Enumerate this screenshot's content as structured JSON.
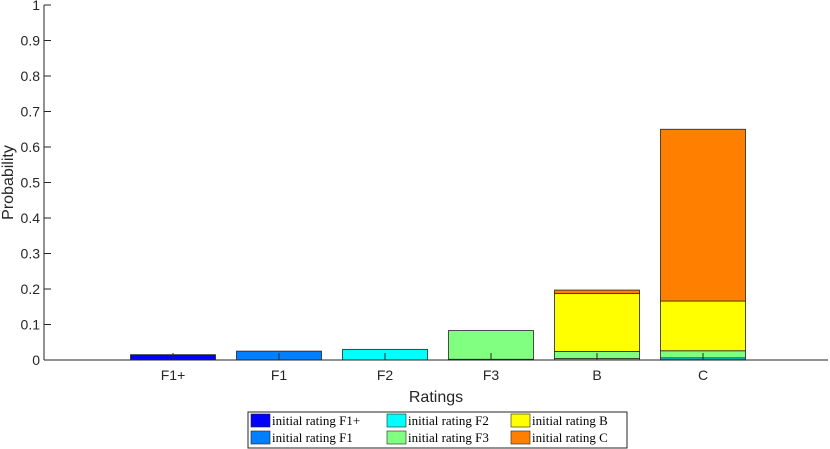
{
  "chart_data": {
    "type": "bar",
    "stacked": true,
    "categories": [
      "F1+",
      "F1",
      "F2",
      "F3",
      "B",
      "C"
    ],
    "xlabel": "Ratings",
    "ylabel": "Probability",
    "ylim": [
      0,
      1
    ],
    "yticks": [
      "0",
      "0.1",
      "0.2",
      "0.3",
      "0.4",
      "0.5",
      "0.6",
      "0.7",
      "0.8",
      "0.9",
      "1"
    ],
    "grid": false,
    "legend_position": "bottom",
    "series": [
      {
        "name": "initial rating F1+",
        "color": "#0000ff",
        "values": [
          0.015,
          0,
          0,
          0,
          0,
          0
        ]
      },
      {
        "name": "initial rating F1",
        "color": "#0080ff",
        "values": [
          0,
          0.025,
          0,
          0,
          0,
          0.001
        ]
      },
      {
        "name": "initial rating F2",
        "color": "#00ffff",
        "values": [
          0,
          0,
          0.03,
          0.002,
          0.004,
          0.005
        ]
      },
      {
        "name": "initial rating F3",
        "color": "#80ff80",
        "values": [
          0,
          0,
          0,
          0.081,
          0.02,
          0.02
        ]
      },
      {
        "name": "initial rating B",
        "color": "#ffff00",
        "values": [
          0,
          0,
          0,
          0,
          0.163,
          0.14
        ]
      },
      {
        "name": "initial rating C",
        "color": "#ff8000",
        "values": [
          0,
          0,
          0,
          0,
          0.01,
          0.484
        ]
      }
    ]
  }
}
